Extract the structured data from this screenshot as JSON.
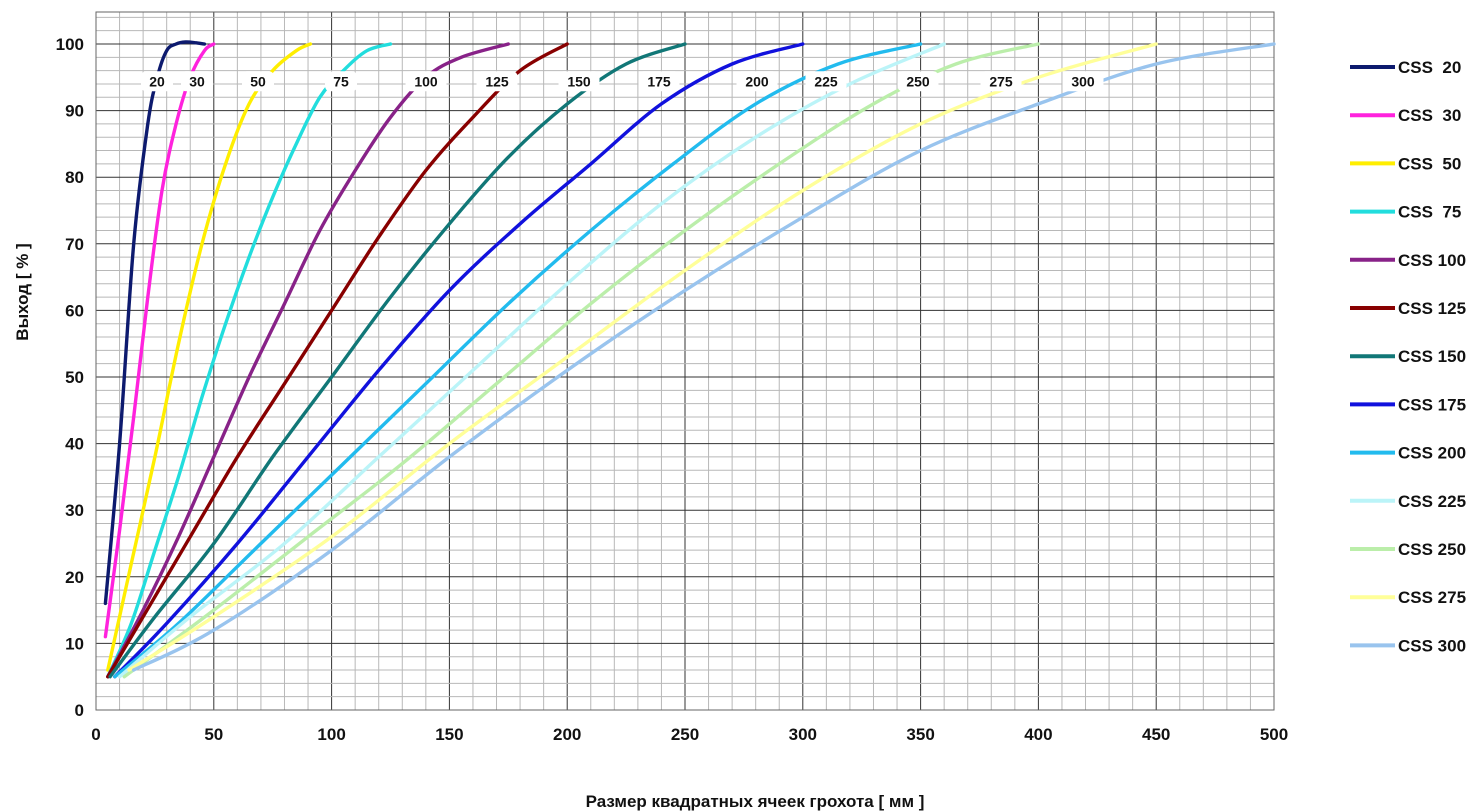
{
  "chart_data": {
    "type": "line",
    "xlabel": "Размер квадратных ячеек грохота [ мм ]",
    "ylabel": "Выход [ % ]",
    "xlim": [
      0,
      500
    ],
    "ylim": [
      0,
      100
    ],
    "x_ticks": [
      "0",
      "50",
      "100",
      "150",
      "200",
      "250",
      "300",
      "350",
      "400",
      "450",
      "500"
    ],
    "y_ticks": [
      "0",
      "10",
      "20",
      "30",
      "40",
      "50",
      "60",
      "70",
      "80",
      "90",
      "100"
    ],
    "grid": true,
    "legend_position": "right",
    "series": [
      {
        "name": "CSS  20",
        "label": "20",
        "color": "#0d1a6e",
        "x": [
          4,
          10,
          16,
          22,
          26,
          30,
          34,
          38,
          42,
          46
        ],
        "y": [
          16,
          40,
          70,
          88,
          95,
          99,
          100,
          100.3,
          100.2,
          100
        ]
      },
      {
        "name": "CSS  30",
        "label": "30",
        "color": "#ff22dd",
        "x": [
          4,
          10,
          16,
          22,
          28,
          34,
          40,
          46,
          50
        ],
        "y": [
          11,
          27,
          44,
          62,
          78,
          88,
          95,
          99,
          100
        ]
      },
      {
        "name": "CSS  50",
        "label": "50",
        "color": "#ffee00",
        "x": [
          5,
          15,
          25,
          35,
          45,
          55,
          65,
          75,
          85,
          91
        ],
        "y": [
          6,
          22,
          38,
          55,
          70,
          82,
          91,
          96,
          99,
          100
        ]
      },
      {
        "name": "CSS  75",
        "label": "75",
        "color": "#22dddd",
        "x": [
          5,
          15,
          25,
          35,
          45,
          55,
          65,
          75,
          85,
          95,
          105,
          115,
          125
        ],
        "y": [
          5,
          13,
          24,
          35,
          47,
          58,
          68,
          77,
          85,
          92,
          96,
          99,
          100
        ]
      },
      {
        "name": "CSS 100",
        "label": "100",
        "color": "#882288",
        "x": [
          5,
          20,
          35,
          50,
          65,
          80,
          95,
          110,
          125,
          140,
          155,
          175
        ],
        "y": [
          5,
          15,
          26,
          38,
          50,
          61,
          72,
          81,
          89,
          95,
          98,
          100
        ]
      },
      {
        "name": "CSS 125",
        "label": "125",
        "color": "#880000",
        "x": [
          5,
          20,
          40,
          60,
          80,
          100,
          120,
          140,
          160,
          180,
          200
        ],
        "y": [
          5,
          14,
          26,
          38,
          49,
          60,
          71,
          81,
          89,
          96,
          100
        ]
      },
      {
        "name": "CSS 150",
        "label": "150",
        "color": "#117777",
        "x": [
          6,
          25,
          50,
          75,
          100,
          125,
          150,
          175,
          200,
          225,
          250
        ],
        "y": [
          5,
          14,
          25,
          38,
          50,
          62,
          73,
          83,
          91,
          97,
          100
        ]
      },
      {
        "name": "CSS 175",
        "label": "175",
        "color": "#1111dd",
        "x": [
          8,
          30,
          60,
          90,
          120,
          150,
          180,
          210,
          240,
          270,
          300
        ],
        "y": [
          5,
          13,
          25,
          38,
          51,
          63,
          73,
          82,
          91,
          97,
          100
        ]
      },
      {
        "name": "CSS 200",
        "label": "200",
        "color": "#22bbee",
        "x": [
          8,
          35,
          70,
          105,
          140,
          175,
          210,
          245,
          280,
          315,
          350
        ],
        "y": [
          5,
          13,
          25,
          37,
          49,
          61,
          72,
          82,
          91,
          97,
          100
        ]
      },
      {
        "name": "CSS 225",
        "label": "225",
        "color": "#bbf4f8",
        "x": [
          10,
          40,
          80,
          120,
          160,
          200,
          240,
          280,
          320,
          360
        ],
        "y": [
          5,
          14,
          25,
          38,
          51,
          64,
          76,
          86,
          94,
          100
        ]
      },
      {
        "name": "CSS 250",
        "label": "250",
        "color": "#bbeeaa",
        "x": [
          12,
          50,
          90,
          130,
          170,
          210,
          250,
          290,
          330,
          365,
          400
        ],
        "y": [
          5,
          15,
          26,
          37,
          49,
          61,
          72,
          82,
          91,
          97,
          100
        ]
      },
      {
        "name": "CSS 275",
        "label": "275",
        "color": "#ffff99",
        "x": [
          14,
          50,
          100,
          150,
          200,
          250,
          300,
          350,
          400,
          450
        ],
        "y": [
          6,
          14,
          26,
          40,
          53,
          66,
          78,
          88,
          95,
          100
        ]
      },
      {
        "name": "CSS 300",
        "label": "300",
        "color": "#99c4ee",
        "x": [
          16,
          50,
          100,
          150,
          200,
          250,
          300,
          350,
          400,
          450,
          500
        ],
        "y": [
          6,
          12,
          24,
          38,
          51,
          63,
          74,
          84,
          91,
          97,
          100
        ]
      }
    ]
  }
}
